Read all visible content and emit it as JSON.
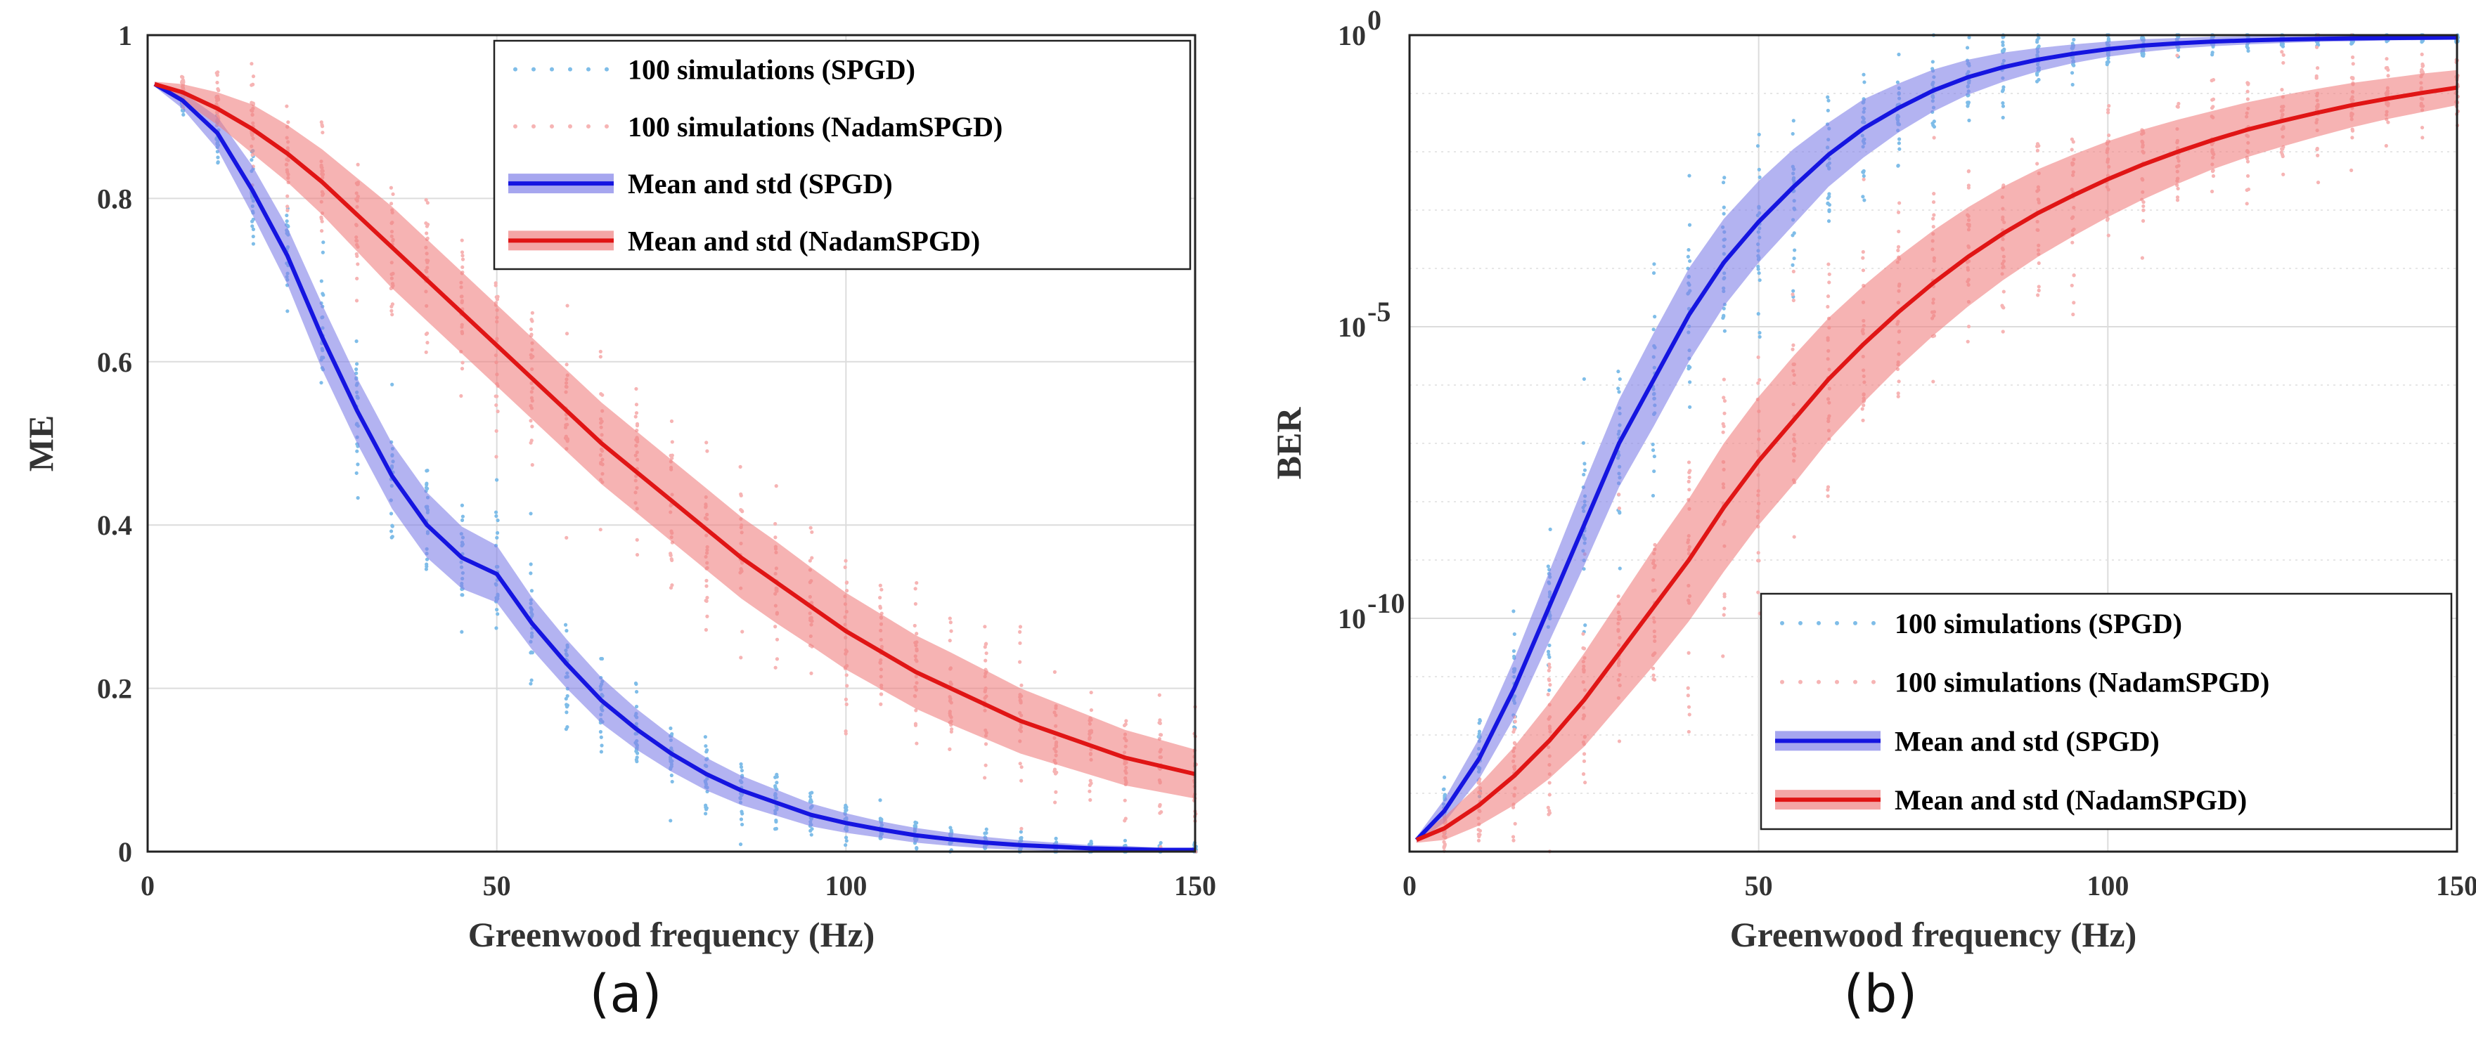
{
  "chart_data": [
    {
      "panel_label": "(a)",
      "type": "line",
      "xlabel": "Greenwood frequency (Hz)",
      "ylabel": "ME",
      "xlim": [
        0,
        150
      ],
      "ylim": [
        0,
        1
      ],
      "yscale": "linear",
      "xticks": [
        "0",
        "50",
        "100",
        "150"
      ],
      "yticks": [
        "0",
        "0.2",
        "0.4",
        "0.6",
        "0.8",
        "1"
      ],
      "grid": true,
      "legend_position": "top-right",
      "x": [
        1,
        5,
        10,
        15,
        20,
        25,
        30,
        35,
        40,
        45,
        50,
        55,
        60,
        65,
        70,
        75,
        80,
        85,
        90,
        95,
        100,
        105,
        110,
        115,
        120,
        125,
        130,
        135,
        140,
        145,
        150
      ],
      "series": [
        {
          "name": "100 simulations (SPGD)",
          "kind": "scatter",
          "color": "#7fbde8"
        },
        {
          "name": "100 simulations (NadamSPGD)",
          "kind": "scatter",
          "color": "#f6b4b4"
        },
        {
          "name": "Mean and std (SPGD)",
          "kind": "line",
          "color": "#1515e0",
          "band_color": "#8080e8",
          "values": [
            0.94,
            0.92,
            0.88,
            0.81,
            0.73,
            0.63,
            0.54,
            0.46,
            0.4,
            0.36,
            0.34,
            0.28,
            0.23,
            0.185,
            0.15,
            0.12,
            0.095,
            0.075,
            0.06,
            0.045,
            0.035,
            0.027,
            0.02,
            0.015,
            0.011,
            0.008,
            0.006,
            0.004,
            0.003,
            0.002,
            0.002
          ],
          "std": [
            0.003,
            0.01,
            0.02,
            0.03,
            0.035,
            0.04,
            0.04,
            0.04,
            0.04,
            0.038,
            0.035,
            0.032,
            0.03,
            0.028,
            0.025,
            0.022,
            0.02,
            0.018,
            0.016,
            0.014,
            0.012,
            0.01,
            0.009,
            0.008,
            0.007,
            0.006,
            0.005,
            0.004,
            0.004,
            0.003,
            0.003
          ]
        },
        {
          "name": "Mean and std (NadamSPGD)",
          "kind": "line",
          "color": "#e01515",
          "band_color": "#f08080",
          "values": [
            0.94,
            0.93,
            0.91,
            0.885,
            0.855,
            0.82,
            0.78,
            0.74,
            0.7,
            0.66,
            0.62,
            0.58,
            0.54,
            0.5,
            0.465,
            0.43,
            0.395,
            0.36,
            0.33,
            0.3,
            0.27,
            0.245,
            0.22,
            0.2,
            0.18,
            0.16,
            0.145,
            0.13,
            0.115,
            0.105,
            0.095
          ],
          "std": [
            0.003,
            0.01,
            0.02,
            0.03,
            0.035,
            0.04,
            0.045,
            0.05,
            0.05,
            0.05,
            0.05,
            0.05,
            0.05,
            0.05,
            0.05,
            0.05,
            0.05,
            0.05,
            0.05,
            0.048,
            0.047,
            0.046,
            0.045,
            0.044,
            0.042,
            0.04,
            0.038,
            0.036,
            0.034,
            0.032,
            0.03
          ]
        }
      ]
    },
    {
      "panel_label": "(b)",
      "type": "line",
      "xlabel": "Greenwood frequency (Hz)",
      "ylabel": "BER",
      "xlim": [
        0,
        150
      ],
      "ylim_log10": [
        -14,
        0
      ],
      "yscale": "log",
      "xticks": [
        "0",
        "50",
        "100",
        "150"
      ],
      "yticks": [
        {
          "base": "10",
          "exp": "0",
          "log10": 0
        },
        {
          "base": "10",
          "exp": "-5",
          "log10": -5
        },
        {
          "base": "10",
          "exp": "-10",
          "log10": -10
        }
      ],
      "grid": true,
      "legend_position": "bottom-right",
      "x": [
        1,
        5,
        10,
        15,
        20,
        25,
        30,
        35,
        40,
        45,
        50,
        55,
        60,
        65,
        70,
        75,
        80,
        85,
        90,
        95,
        100,
        105,
        110,
        115,
        120,
        125,
        130,
        135,
        140,
        145,
        150
      ],
      "series": [
        {
          "name": "100 simulations (SPGD)",
          "kind": "scatter",
          "color": "#7fbde8"
        },
        {
          "name": "100 simulations (NadamSPGD)",
          "kind": "scatter",
          "color": "#f6b4b4"
        },
        {
          "name": "Mean and std (SPGD)",
          "kind": "line",
          "color": "#1515e0",
          "band_color": "#8080e8",
          "log10_values": [
            -13.8,
            -13.3,
            -12.4,
            -11.2,
            -9.8,
            -8.4,
            -7.0,
            -5.9,
            -4.8,
            -3.9,
            -3.2,
            -2.6,
            -2.05,
            -1.6,
            -1.25,
            -0.95,
            -0.72,
            -0.55,
            -0.42,
            -0.32,
            -0.24,
            -0.18,
            -0.14,
            -0.11,
            -0.09,
            -0.075,
            -0.065,
            -0.055,
            -0.05,
            -0.045,
            -0.04
          ],
          "log10_std": [
            0.05,
            0.2,
            0.35,
            0.5,
            0.6,
            0.7,
            0.75,
            0.8,
            0.8,
            0.75,
            0.7,
            0.65,
            0.55,
            0.5,
            0.42,
            0.36,
            0.3,
            0.25,
            0.2,
            0.16,
            0.13,
            0.11,
            0.09,
            0.08,
            0.07,
            0.06,
            0.05,
            0.05,
            0.04,
            0.04,
            0.04
          ]
        },
        {
          "name": "Mean and std (NadamSPGD)",
          "kind": "line",
          "color": "#e01515",
          "band_color": "#f08080",
          "log10_values": [
            -13.8,
            -13.6,
            -13.2,
            -12.7,
            -12.1,
            -11.4,
            -10.6,
            -9.8,
            -9.0,
            -8.1,
            -7.3,
            -6.6,
            -5.9,
            -5.3,
            -4.75,
            -4.25,
            -3.8,
            -3.4,
            -3.05,
            -2.75,
            -2.47,
            -2.22,
            -2.0,
            -1.8,
            -1.62,
            -1.47,
            -1.33,
            -1.2,
            -1.09,
            -0.99,
            -0.9
          ],
          "log10_std": [
            0.05,
            0.2,
            0.35,
            0.5,
            0.65,
            0.8,
            0.9,
            1.0,
            1.05,
            1.1,
            1.1,
            1.1,
            1.05,
            1.0,
            0.95,
            0.9,
            0.85,
            0.8,
            0.75,
            0.7,
            0.65,
            0.6,
            0.55,
            0.5,
            0.47,
            0.44,
            0.41,
            0.38,
            0.35,
            0.33,
            0.3
          ]
        }
      ]
    }
  ]
}
